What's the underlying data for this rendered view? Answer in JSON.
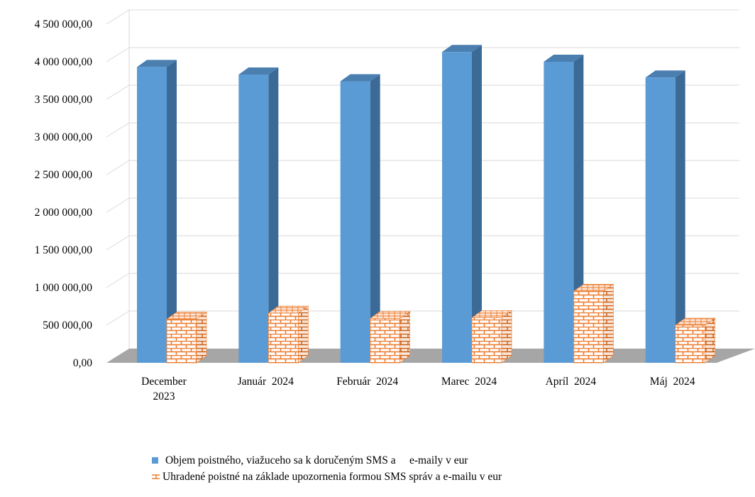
{
  "chart_data": {
    "type": "bar",
    "categories": [
      [
        "December",
        "2023"
      ],
      [
        "Január  2024"
      ],
      [
        "Február  2024"
      ],
      [
        "Marec  2024"
      ],
      [
        "Apríl  2024"
      ],
      [
        "Máj  2024"
      ]
    ],
    "series": [
      {
        "name": "Objem poistného, viažuceho sa k doručeným SMS a     e-maily v eur",
        "values": [
          3930000,
          3830000,
          3740000,
          4130000,
          4000000,
          3790000
        ],
        "color": "#5b9bd5",
        "side_color": "#3c6a97",
        "top_color": "#4a7fb0"
      },
      {
        "name": "Uhradené poistné na základe upozornenia formou SMS správ a e-mailu v eur",
        "values": [
          580000,
          660000,
          590000,
          600000,
          950000,
          500000
        ],
        "pattern": "brick",
        "color": "#ed7d31"
      }
    ],
    "y_ticks": [
      "0,00",
      "500 000,00",
      "1 000 000,00",
      "1 500 000,00",
      "2 000 000,00",
      "2 500 000,00",
      "3 000 000,00",
      "3 500 000,00",
      "4 000 000,00",
      "4 500 000,00"
    ],
    "ylim": [
      0,
      4500000
    ],
    "y_step": 500000,
    "grid": true,
    "legend_position": "bottom",
    "floor_color": "#a6a6a6"
  }
}
